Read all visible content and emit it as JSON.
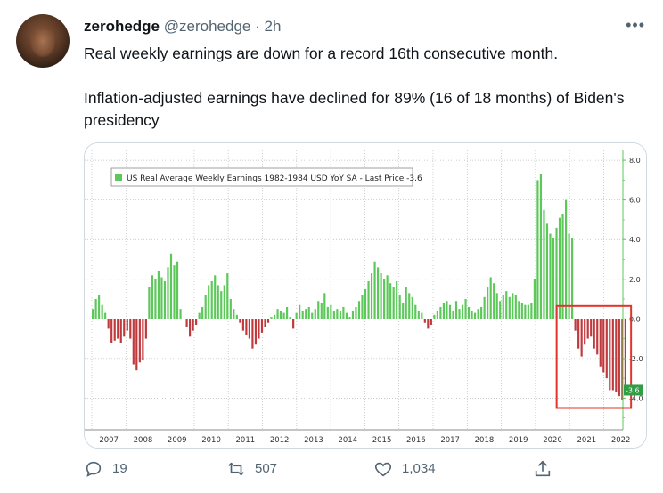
{
  "tweet": {
    "display_name": "zerohedge",
    "handle": "@zerohedge",
    "separator": "·",
    "time": "2h",
    "more_label": "•••",
    "text_line1": "Real weekly earnings are down for a record 16th consecutive month.",
    "text_line2": "Inflation-adjusted earnings have declined for 89% (16 of 18 months) of Biden's presidency"
  },
  "actions": {
    "replies": "19",
    "retweets": "507",
    "likes": "1,034"
  },
  "icons": {
    "reply": "reply-icon",
    "retweet": "retweet-icon",
    "like": "heart-icon",
    "share": "share-icon",
    "more": "more-icon"
  },
  "colors": {
    "positive": "#5cc85a",
    "negative": "#c0393d",
    "highlight_box": "#e0352b",
    "last_price_tag": "#2f9e44"
  },
  "chart_data": {
    "type": "bar",
    "legend": "US Real Average Weekly Earnings 1982-1984 USD YoY SA - Last Price -3.6",
    "legend_placement": "top-left",
    "last_price_label": "-3.6",
    "x_ticks": [
      "2007",
      "2008",
      "2009",
      "2010",
      "2011",
      "2012",
      "2013",
      "2014",
      "2015",
      "2016",
      "2017",
      "2018",
      "2019",
      "2020",
      "2021",
      "2022"
    ],
    "y_ticks": [
      "8.0",
      "6.0",
      "4.0",
      "2.0",
      "0.0",
      "-2.0",
      "-4.0"
    ],
    "ylim": [
      -5,
      8.5
    ],
    "start_year": 2007.0,
    "end_year": 2022.7,
    "grid": true,
    "values": [
      0.5,
      1.0,
      1.2,
      0.7,
      0.3,
      -0.5,
      -1.2,
      -1.1,
      -1.0,
      -1.2,
      -0.9,
      -0.6,
      -1.0,
      -2.3,
      -2.6,
      -2.2,
      -2.1,
      -1.0,
      1.6,
      2.2,
      2.0,
      2.4,
      2.1,
      1.9,
      2.6,
      3.3,
      2.7,
      2.9,
      0.5,
      0.0,
      -0.4,
      -0.9,
      -0.6,
      -0.3,
      0.3,
      0.6,
      1.2,
      1.7,
      1.9,
      2.2,
      1.7,
      1.4,
      1.7,
      2.3,
      1.0,
      0.5,
      0.2,
      -0.2,
      -0.6,
      -0.8,
      -1.0,
      -1.5,
      -1.3,
      -1.0,
      -0.7,
      -0.4,
      -0.2,
      0.1,
      0.2,
      0.5,
      0.4,
      0.3,
      0.6,
      0.1,
      -0.5,
      0.3,
      0.7,
      0.4,
      0.5,
      0.6,
      0.3,
      0.5,
      0.9,
      0.8,
      1.3,
      0.6,
      0.7,
      0.4,
      0.5,
      0.4,
      0.6,
      0.3,
      0.1,
      0.4,
      0.6,
      0.9,
      1.2,
      1.5,
      1.9,
      2.3,
      2.9,
      2.6,
      2.3,
      2.0,
      2.2,
      1.8,
      1.6,
      1.9,
      1.2,
      0.8,
      1.6,
      1.3,
      1.1,
      0.7,
      0.4,
      0.3,
      -0.2,
      -0.5,
      -0.3,
      0.2,
      0.4,
      0.6,
      0.8,
      0.9,
      0.7,
      0.4,
      0.9,
      0.5,
      0.7,
      1.0,
      0.6,
      0.4,
      0.3,
      0.5,
      0.6,
      1.1,
      1.6,
      2.1,
      1.8,
      1.3,
      0.9,
      1.2,
      1.4,
      1.1,
      1.3,
      1.2,
      0.9,
      0.8,
      0.7,
      0.7,
      0.8,
      2.0,
      7.0,
      7.3,
      5.5,
      4.8,
      4.3,
      4.1,
      4.6,
      5.1,
      5.3,
      6.0,
      4.3,
      4.1,
      -0.6,
      -1.5,
      -1.9,
      -1.3,
      -1.0,
      -0.9,
      -1.5,
      -1.8,
      -2.4,
      -2.7,
      -3.0,
      -3.6,
      -3.6,
      -3.7,
      -3.9,
      -4.1,
      -3.6
    ]
  }
}
